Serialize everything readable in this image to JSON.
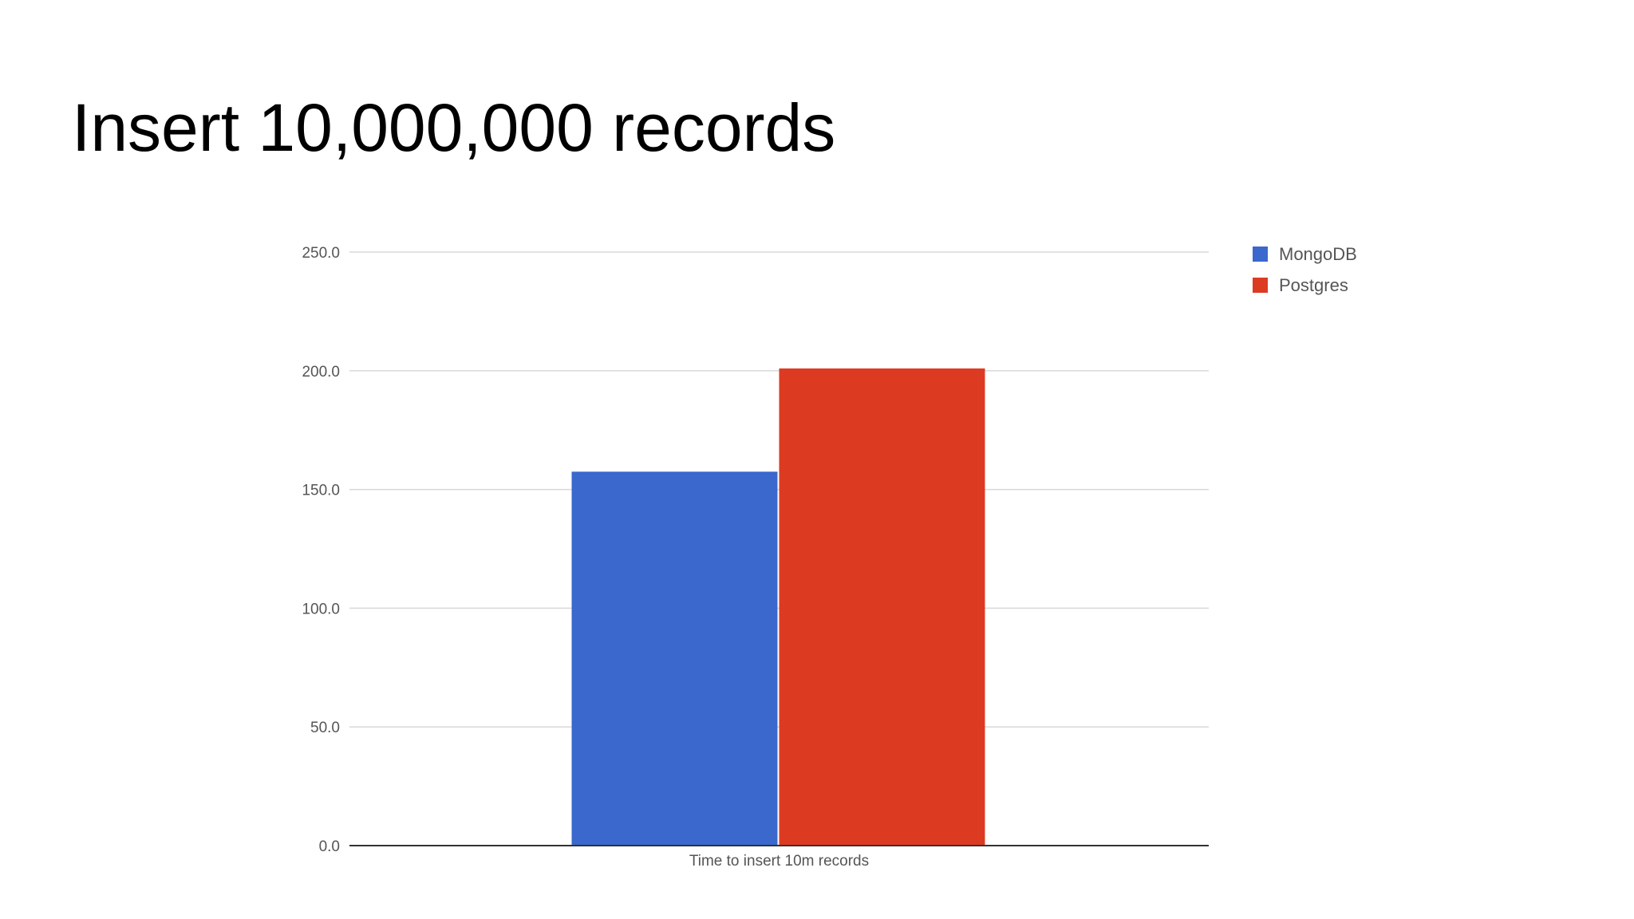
{
  "slide": {
    "title": "Insert 10,000,000 records"
  },
  "chart_data": {
    "type": "bar",
    "categories": [
      "Time to insert 10m records"
    ],
    "series": [
      {
        "name": "MongoDB",
        "values": [
          157.5
        ],
        "color": "#3a68cc"
      },
      {
        "name": "Postgres",
        "values": [
          201
        ],
        "color": "#dc3b22"
      }
    ],
    "ylim": [
      0,
      250
    ],
    "yticks": [
      0,
      50,
      100,
      150,
      200,
      250
    ],
    "ytick_labels": [
      "0.0",
      "50.0",
      "100.0",
      "150.0",
      "200.0",
      "250.0"
    ],
    "grid": true,
    "legend_position": "top-right",
    "colors": {
      "gridline": "#d9d9d9",
      "baseline": "#333333",
      "label_text": "#555555"
    }
  }
}
